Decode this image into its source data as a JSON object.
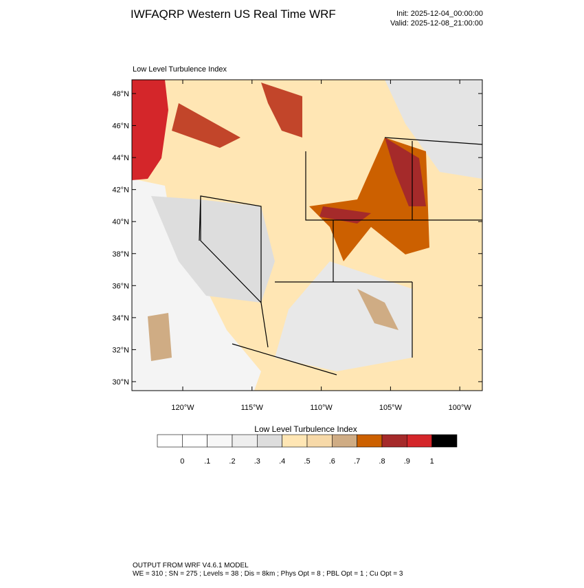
{
  "header": {
    "title": "IWFAQRP Western US Real Time WRF",
    "init": "Init: 2025-12-04_00:00:00",
    "valid": "Valid: 2025-12-08_21:00:00"
  },
  "map": {
    "subtitle": "Low Level Turbulence Index",
    "lat_labels": [
      "48°N",
      "46°N",
      "44°N",
      "42°N",
      "40°N",
      "38°N",
      "36°N",
      "34°N",
      "32°N",
      "30°N"
    ],
    "lon_labels": [
      "120°W",
      "115°W",
      "110°W",
      "105°W",
      "100°W"
    ]
  },
  "colorbar": {
    "title": "Low Level Turbulence Index",
    "labels": [
      "0",
      ".1",
      ".2",
      ".3",
      ".4",
      ".5",
      ".6",
      ".7",
      ".8",
      ".9",
      "1"
    ],
    "colors": [
      "#ffffff",
      "#f7f7f7",
      "#eeeeee",
      "#dddddd",
      "#ffe6b4",
      "#f7d9a8",
      "#cfac84",
      "#cc6000",
      "#a52a2a",
      "#d4262a",
      "#000000"
    ]
  },
  "footer": {
    "line1": "OUTPUT FROM WRF V4.6.1 MODEL",
    "line2": "WE = 310 ; SN = 275 ; Levels = 38 ; Dis = 8km ; Phys Opt = 8 ; PBL Opt = 1 ; Cu Opt = 3"
  }
}
